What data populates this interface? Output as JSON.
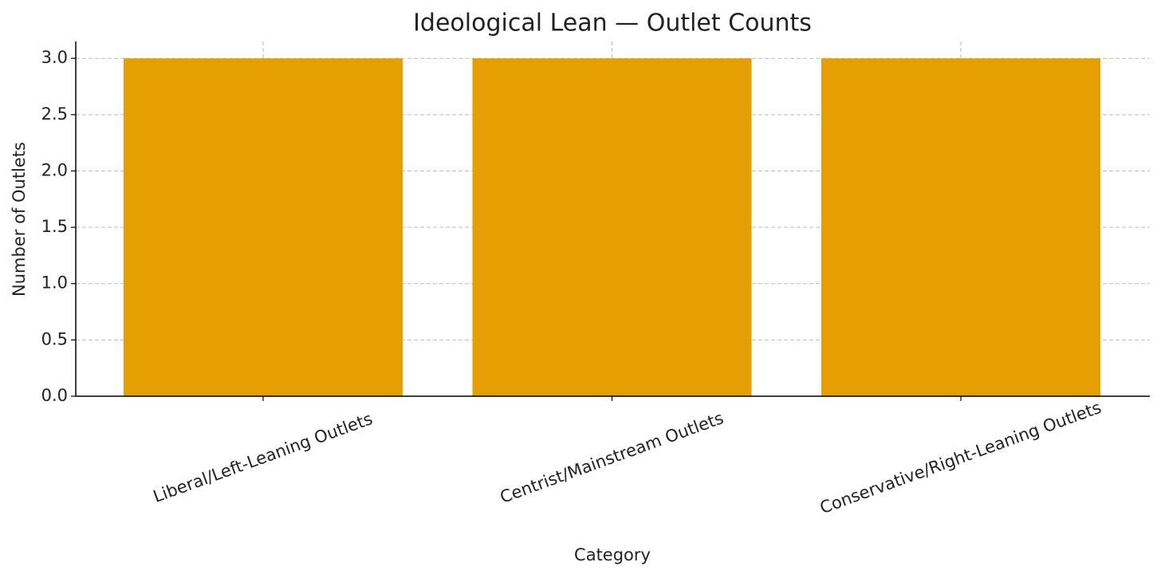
{
  "chart_data": {
    "type": "bar",
    "title": "Ideological Lean — Outlet Counts",
    "x_label": "Category",
    "y_label": "Number of Outlets",
    "categories": [
      "Liberal/Left-Leaning Outlets",
      "Centrist/Mainstream Outlets",
      "Conservative/Right-Leaning Outlets"
    ],
    "values": [
      3,
      3,
      3
    ],
    "color": "#e69f00",
    "ylim": [
      0,
      3.15
    ],
    "yticks": [
      {
        "value": 0,
        "label": "0.0"
      },
      0.5,
      {
        "value": 1,
        "label": "1.0"
      },
      1.5,
      {
        "value": 2,
        "label": "2.0"
      },
      2.5,
      {
        "value": 3,
        "label": "3.0"
      }
    ],
    "grid": true
  }
}
